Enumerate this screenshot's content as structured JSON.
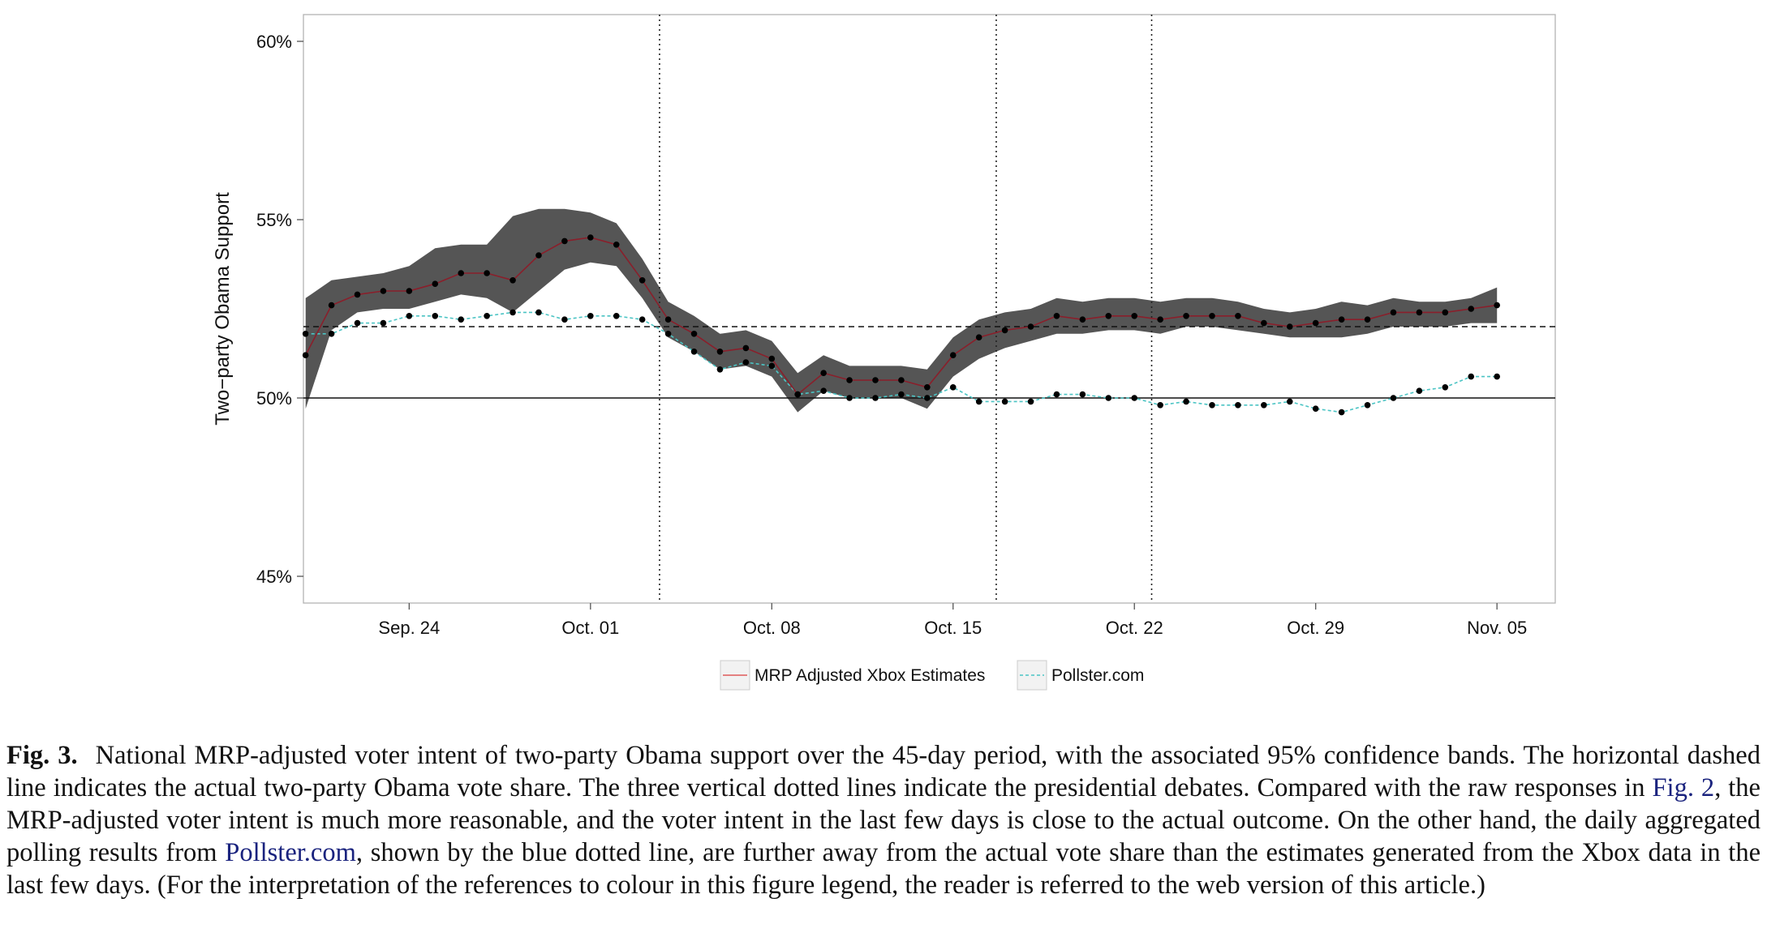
{
  "chart_data": {
    "type": "line",
    "title": "",
    "xlabel": "",
    "ylabel": "Two−party Obama Support",
    "x_tick_labels": [
      "Sep. 24",
      "Oct. 01",
      "Oct. 08",
      "Oct. 15",
      "Oct. 22",
      "Oct. 29",
      "Nov. 05"
    ],
    "x_tick_dates": [
      "2012-09-24",
      "2012-10-01",
      "2012-10-08",
      "2012-10-15",
      "2012-10-22",
      "2012-10-29",
      "2012-11-05"
    ],
    "y_tick_labels": [
      "45%",
      "50%",
      "55%",
      "60%"
    ],
    "y_ticks": [
      45,
      50,
      55,
      60
    ],
    "xlim": [
      "2012-09-19T22:00",
      "2012-11-07T06:00"
    ],
    "ylim": [
      44.25,
      60.75
    ],
    "grid": false,
    "legend_position": "bottom",
    "dates": [
      "2012-09-20",
      "2012-09-21",
      "2012-09-22",
      "2012-09-23",
      "2012-09-24",
      "2012-09-25",
      "2012-09-26",
      "2012-09-27",
      "2012-09-28",
      "2012-09-29",
      "2012-09-30",
      "2012-10-01",
      "2012-10-02",
      "2012-10-03",
      "2012-10-04",
      "2012-10-05",
      "2012-10-06",
      "2012-10-07",
      "2012-10-08",
      "2012-10-09",
      "2012-10-10",
      "2012-10-11",
      "2012-10-12",
      "2012-10-13",
      "2012-10-14",
      "2012-10-15",
      "2012-10-16",
      "2012-10-17",
      "2012-10-18",
      "2012-10-19",
      "2012-10-20",
      "2012-10-21",
      "2012-10-22",
      "2012-10-23",
      "2012-10-24",
      "2012-10-25",
      "2012-10-26",
      "2012-10-27",
      "2012-10-28",
      "2012-10-29",
      "2012-10-30",
      "2012-10-31",
      "2012-11-01",
      "2012-11-02",
      "2012-11-03",
      "2012-11-04",
      "2012-11-05"
    ],
    "series": [
      {
        "name": "MRP Adjusted Xbox Estimates",
        "color": "#e05a5a",
        "line_style": "solid",
        "values": [
          51.2,
          52.6,
          52.9,
          53.0,
          53.0,
          53.2,
          53.5,
          53.5,
          53.3,
          54.0,
          54.4,
          54.5,
          54.3,
          53.3,
          52.2,
          51.8,
          51.3,
          51.4,
          51.1,
          50.1,
          50.7,
          50.5,
          50.5,
          50.5,
          50.3,
          51.2,
          51.7,
          51.9,
          52.0,
          52.3,
          52.2,
          52.3,
          52.3,
          52.2,
          52.3,
          52.3,
          52.3,
          52.1,
          52.0,
          52.1,
          52.2,
          52.2,
          52.4,
          52.4,
          52.4,
          52.5,
          52.6
        ],
        "ci_lower": [
          49.7,
          51.9,
          52.4,
          52.5,
          52.5,
          52.7,
          52.9,
          52.8,
          52.4,
          53.0,
          53.6,
          53.8,
          53.7,
          52.8,
          51.7,
          51.3,
          50.8,
          50.9,
          50.6,
          49.6,
          50.2,
          50.0,
          50.0,
          50.0,
          49.7,
          50.6,
          51.1,
          51.4,
          51.6,
          51.8,
          51.8,
          51.9,
          51.9,
          51.8,
          52.0,
          52.0,
          51.9,
          51.8,
          51.7,
          51.7,
          51.7,
          51.8,
          52.0,
          52.0,
          52.0,
          52.1,
          52.1
        ],
        "ci_upper": [
          52.8,
          53.3,
          53.4,
          53.5,
          53.7,
          54.2,
          54.3,
          54.3,
          55.1,
          55.3,
          55.3,
          55.2,
          54.9,
          53.9,
          52.7,
          52.3,
          51.8,
          51.9,
          51.6,
          50.7,
          51.2,
          50.9,
          50.9,
          50.9,
          50.8,
          51.7,
          52.2,
          52.4,
          52.5,
          52.8,
          52.7,
          52.8,
          52.8,
          52.7,
          52.8,
          52.8,
          52.7,
          52.5,
          52.4,
          52.5,
          52.7,
          52.6,
          52.8,
          52.7,
          52.7,
          52.8,
          53.1
        ]
      },
      {
        "name": "Pollster.com",
        "color": "#4bc4c4",
        "line_style": "dashed",
        "values": [
          51.8,
          51.8,
          52.1,
          52.1,
          52.3,
          52.3,
          52.2,
          52.3,
          52.4,
          52.4,
          52.2,
          52.3,
          52.3,
          52.2,
          51.8,
          51.3,
          50.8,
          51.0,
          50.9,
          50.1,
          50.2,
          50.0,
          50.0,
          50.1,
          50.0,
          50.3,
          49.9,
          49.9,
          49.9,
          50.1,
          50.1,
          50.0,
          50.0,
          49.8,
          49.9,
          49.8,
          49.8,
          49.8,
          49.9,
          49.7,
          49.6,
          49.8,
          50.0,
          50.2,
          50.3,
          50.6,
          50.6
        ]
      }
    ],
    "reference_lines": {
      "actual_vote_share": 52.0,
      "baseline": 50.0,
      "debate_dates": [
        "2012-10-03",
        "2012-10-16",
        "2012-10-22"
      ]
    }
  },
  "caption": {
    "label": "Fig. 3.",
    "text_1": "National MRP-adjusted voter intent of two-party Obama support over the 45-day period, with the associated 95% confidence bands. The horizontal dashed line indicates the actual two-party Obama vote share. The three vertical dotted lines indicate the presidential debates. Compared with the raw responses in ",
    "ref_1": "Fig. 2",
    "text_2": ", the MRP-adjusted voter intent is much more reasonable, and the voter intent in the last few days is close to the actual outcome. On the other hand, the daily aggregated polling results from ",
    "ref_2": "Pollster.com",
    "text_3": ", shown by the blue dotted line, are further away from the actual vote share than the estimates generated from the Xbox data in the last few days. (For the interpretation of the references to colour in this figure legend, the reader is referred to the web version of this article.)"
  }
}
